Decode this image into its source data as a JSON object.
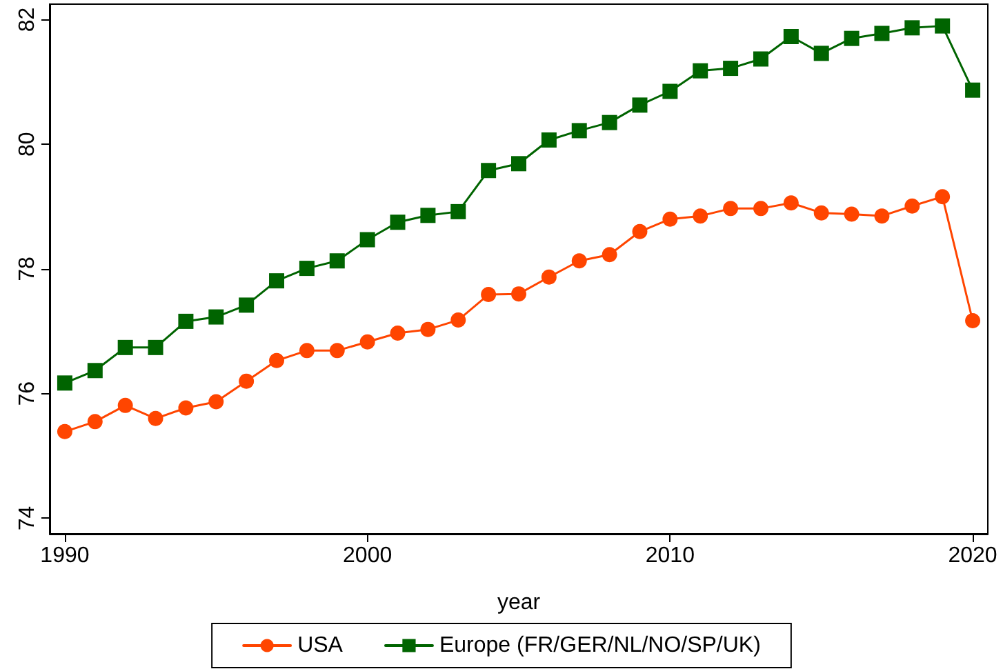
{
  "chart_data": {
    "type": "line",
    "xlabel": "year",
    "x": [
      1990,
      1991,
      1992,
      1993,
      1994,
      1995,
      1996,
      1997,
      1998,
      1999,
      2000,
      2001,
      2002,
      2003,
      2004,
      2005,
      2006,
      2007,
      2008,
      2009,
      2010,
      2011,
      2012,
      2013,
      2014,
      2015,
      2016,
      2017,
      2018,
      2019,
      2020
    ],
    "series": [
      {
        "name": "USA",
        "color": "#ff4500",
        "marker": "circle",
        "values": [
          75.39,
          75.55,
          75.81,
          75.6,
          75.77,
          75.87,
          76.2,
          76.53,
          76.69,
          76.69,
          76.83,
          76.97,
          77.03,
          77.18,
          77.59,
          77.6,
          77.87,
          78.13,
          78.23,
          78.6,
          78.8,
          78.85,
          78.97,
          78.97,
          79.06,
          78.9,
          78.88,
          78.85,
          79.01,
          79.16,
          77.17
        ]
      },
      {
        "name": "Europe (FR/GER/NL/NO/SP/UK)",
        "color": "#006400",
        "marker": "square",
        "values": [
          76.17,
          76.37,
          76.74,
          76.74,
          77.16,
          77.23,
          77.42,
          77.81,
          78.01,
          78.13,
          78.47,
          78.75,
          78.86,
          78.92,
          79.58,
          79.69,
          80.07,
          80.22,
          80.35,
          80.63,
          80.85,
          81.18,
          81.22,
          81.37,
          81.73,
          81.46,
          81.7,
          81.78,
          81.87,
          81.9,
          80.87
        ]
      }
    ],
    "xlim": [
      1989.5,
      2020.5
    ],
    "xticks": [
      1990,
      2000,
      2010,
      2020
    ],
    "ylim": [
      73.75,
      82.25
    ],
    "yticks": [
      74,
      76,
      78,
      80,
      82
    ],
    "legend": "bottom"
  }
}
